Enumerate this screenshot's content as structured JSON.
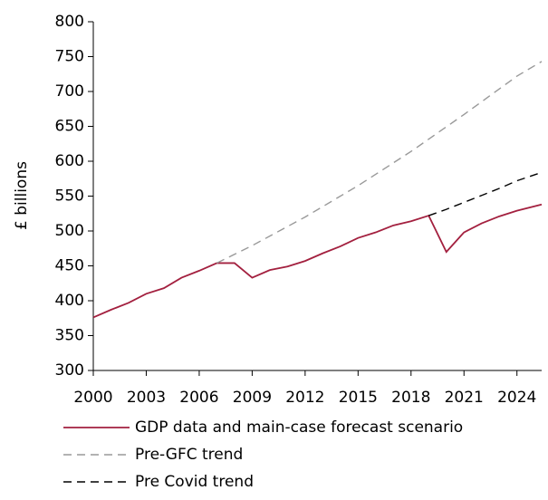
{
  "chart_data": {
    "type": "line",
    "y_label": "£ billions",
    "xlim": [
      2000,
      2025.4
    ],
    "xticks": [
      2000,
      2003,
      2006,
      2009,
      2012,
      2015,
      2018,
      2021,
      2024
    ],
    "ylim": [
      300,
      800
    ],
    "yticks": [
      300,
      350,
      400,
      450,
      500,
      550,
      600,
      650,
      700,
      750,
      800
    ],
    "grid": false,
    "legend": "bottom",
    "series": [
      {
        "name": "GDP data and main-case forecast scenario",
        "color": "#a3203f",
        "dash": "solid",
        "x": [
          2000,
          2001,
          2002,
          2003,
          2004,
          2005,
          2006,
          2007,
          2008,
          2009,
          2010,
          2011,
          2012,
          2013,
          2014,
          2015,
          2016,
          2017,
          2018,
          2019,
          2020,
          2021,
          2022,
          2023,
          2024,
          2025.4
        ],
        "values": [
          376,
          387,
          397,
          410,
          418,
          433,
          443,
          454,
          454,
          433,
          444,
          449,
          457,
          468,
          478,
          490,
          498,
          508,
          514,
          522,
          470,
          498,
          511,
          521,
          529,
          538
        ]
      },
      {
        "name": "Pre-GFC trend",
        "color": "#999999",
        "dash": "dashed",
        "x": [
          2007,
          2009,
          2012,
          2015,
          2018,
          2021,
          2024,
          2025.4
        ],
        "values": [
          454,
          479,
          520,
          565,
          614,
          667,
          722,
          743
        ]
      },
      {
        "name": "Pre Covid trend",
        "color": "#000000",
        "dash": "dashed",
        "x": [
          2019,
          2020,
          2021,
          2022,
          2023,
          2024,
          2025.4
        ],
        "values": [
          522,
          531,
          541,
          551,
          561,
          572,
          584
        ]
      }
    ]
  }
}
